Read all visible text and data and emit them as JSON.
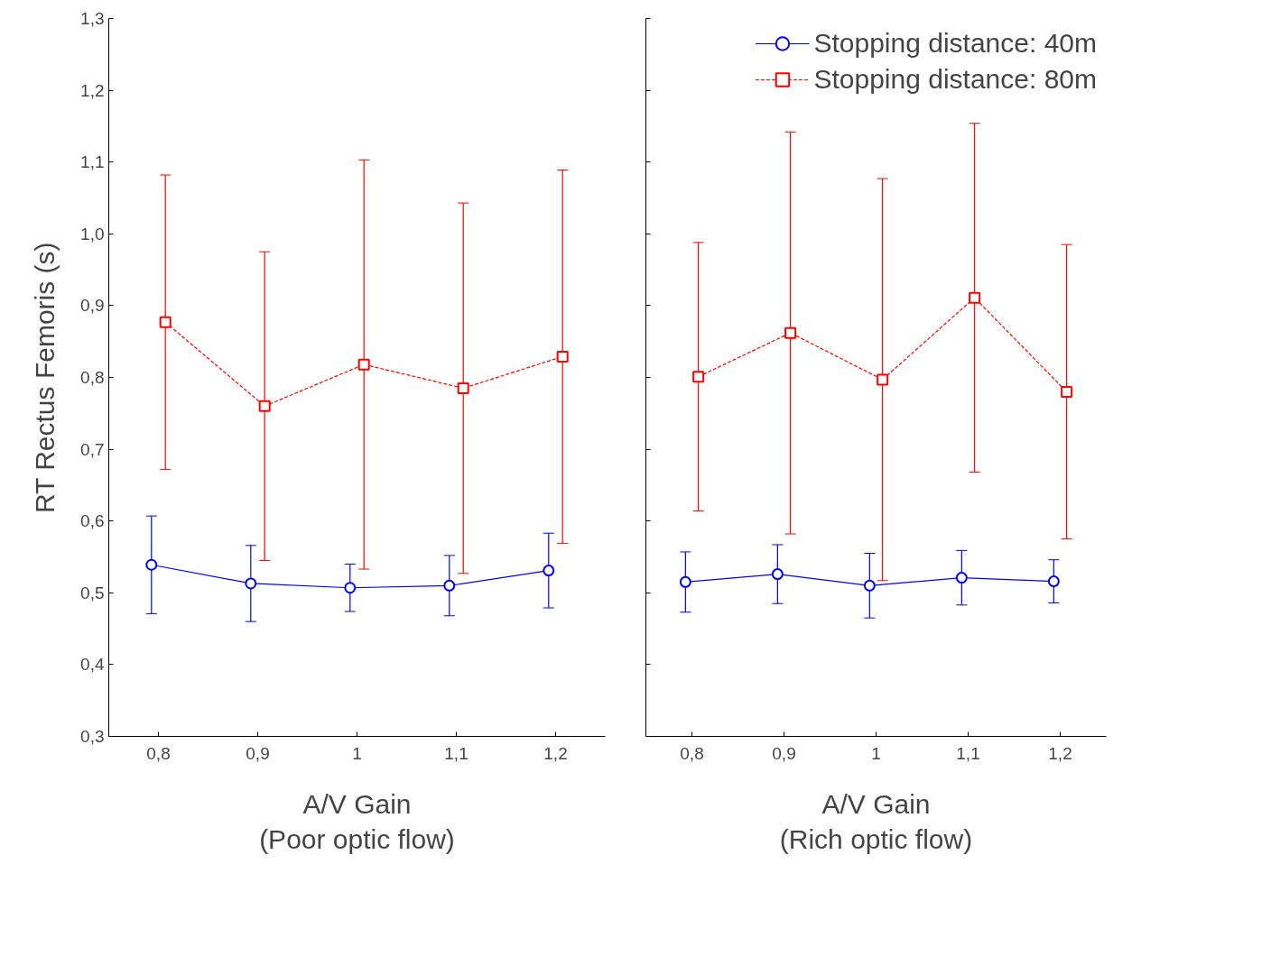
{
  "chart_data": [
    {
      "type": "line",
      "xlabel": "A/V Gain\n(Poor optic flow)",
      "ylabel": "RT Rectus Femoris (s)",
      "categories": [
        "0,8",
        "0,9",
        "1",
        "1,1",
        "1,2"
      ],
      "ylim": [
        0.3,
        1.3
      ],
      "yticks": [
        {
          "value": 0.3,
          "label": "0,3"
        },
        {
          "value": 0.4,
          "label": "0,4"
        },
        {
          "value": 0.5,
          "label": "0,5"
        },
        {
          "value": 0.6,
          "label": "0,6"
        },
        {
          "value": 0.7,
          "label": "0,7"
        },
        {
          "value": 0.8,
          "label": "0,8"
        },
        {
          "value": 0.9,
          "label": "0,9"
        },
        {
          "value": 1.0,
          "label": "1,0"
        },
        {
          "value": 1.1,
          "label": "1,1"
        },
        {
          "value": 1.2,
          "label": "1,2"
        },
        {
          "value": 1.3,
          "label": "1,3"
        }
      ],
      "grid": false,
      "legend": false,
      "series": [
        {
          "color": "#0000ff",
          "marker": "circle",
          "line_style": "solid",
          "values": [
            0.539,
            0.513,
            0.507,
            0.51,
            0.531
          ],
          "errors": [
            0.068,
            0.053,
            0.033,
            0.042,
            0.052
          ]
        },
        {
          "color": "#ff0000",
          "marker": "square",
          "line_style": "dashed",
          "values": [
            0.877,
            0.76,
            0.818,
            0.785,
            0.829
          ],
          "errors": [
            0.205,
            0.215,
            0.285,
            0.258,
            0.26
          ]
        }
      ]
    },
    {
      "type": "line",
      "xlabel": "A/V Gain\n(Rich optic flow)",
      "categories": [
        "0,8",
        "0,9",
        "1",
        "1,1",
        "1,2"
      ],
      "ylim": [
        0.3,
        1.3
      ],
      "yticks": [
        {
          "value": 0.3,
          "label": null
        },
        {
          "value": 0.4,
          "label": null
        },
        {
          "value": 0.5,
          "label": null
        },
        {
          "value": 0.6,
          "label": null
        },
        {
          "value": 0.7,
          "label": null
        },
        {
          "value": 0.8,
          "label": null
        },
        {
          "value": 0.9,
          "label": null
        },
        {
          "value": 1.0,
          "label": null
        },
        {
          "value": 1.1,
          "label": null
        },
        {
          "value": 1.2,
          "label": null
        },
        {
          "value": 1.3,
          "label": null
        }
      ],
      "grid": false,
      "legend": "top right",
      "tick_labels": "x",
      "series": [
        {
          "name": "Stopping distance: 40m",
          "color": "#0000ff",
          "marker": "circle",
          "line_style": "solid",
          "values": [
            0.515,
            0.526,
            0.51,
            0.521,
            0.516
          ],
          "errors": [
            0.042,
            0.041,
            0.045,
            0.038,
            0.03
          ]
        },
        {
          "name": "Stopping distance: 80m",
          "color": "#ff0000",
          "marker": "square",
          "line_style": "dashed",
          "values": [
            0.801,
            0.862,
            0.797,
            0.911,
            0.78
          ],
          "errors": [
            0.187,
            0.28,
            0.28,
            0.243,
            0.205
          ]
        }
      ]
    }
  ]
}
